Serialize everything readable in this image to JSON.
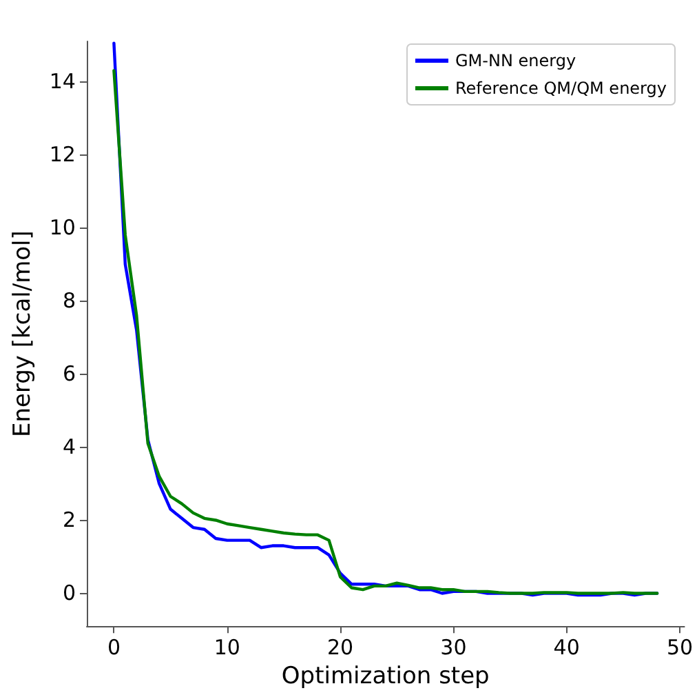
{
  "chart_data": {
    "type": "line",
    "xlabel": "Optimization step",
    "ylabel": "Energy [kcal/mol]",
    "x": [
      0,
      1,
      2,
      3,
      4,
      5,
      6,
      7,
      8,
      9,
      10,
      11,
      12,
      13,
      14,
      15,
      16,
      17,
      18,
      19,
      20,
      21,
      22,
      23,
      24,
      25,
      26,
      27,
      28,
      29,
      30,
      31,
      32,
      33,
      34,
      35,
      36,
      37,
      38,
      39,
      40,
      41,
      42,
      43,
      44,
      45,
      46,
      47,
      48
    ],
    "series": [
      {
        "name": "GM-NN energy",
        "color": "#0000ff",
        "values": [
          15.05,
          9.0,
          7.2,
          4.2,
          3.0,
          2.3,
          2.05,
          1.8,
          1.75,
          1.5,
          1.45,
          1.45,
          1.45,
          1.25,
          1.3,
          1.3,
          1.25,
          1.25,
          1.25,
          1.05,
          0.55,
          0.25,
          0.25,
          0.25,
          0.2,
          0.2,
          0.2,
          0.1,
          0.1,
          0.0,
          0.05,
          0.05,
          0.05,
          0.0,
          0.0,
          0.0,
          0.0,
          -0.05,
          0.0,
          0.0,
          0.0,
          -0.05,
          -0.05,
          -0.05,
          0.0,
          0.0,
          -0.05,
          0.0,
          0.0
        ]
      },
      {
        "name": "Reference QM/QM energy",
        "color": "#008000",
        "values": [
          14.3,
          9.8,
          7.6,
          4.1,
          3.2,
          2.65,
          2.45,
          2.2,
          2.05,
          2.0,
          1.9,
          1.85,
          1.8,
          1.75,
          1.7,
          1.65,
          1.62,
          1.6,
          1.6,
          1.45,
          0.45,
          0.15,
          0.1,
          0.2,
          0.2,
          0.28,
          0.22,
          0.15,
          0.15,
          0.1,
          0.1,
          0.05,
          0.05,
          0.05,
          0.02,
          0.0,
          0.0,
          0.0,
          0.02,
          0.02,
          0.02,
          0.0,
          0.0,
          0.0,
          0.0,
          0.02,
          0.0,
          0.0,
          0.0
        ]
      }
    ],
    "xlim": [
      -2.4,
      50.4
    ],
    "xticks": [
      0,
      10,
      20,
      30,
      40,
      50
    ],
    "ylim": [
      -0.9,
      15.1
    ],
    "yticks": [
      0,
      2,
      4,
      6,
      8,
      10,
      12,
      14
    ],
    "grid": false,
    "legend": "top right",
    "marker": "none",
    "line_style": "solid"
  }
}
